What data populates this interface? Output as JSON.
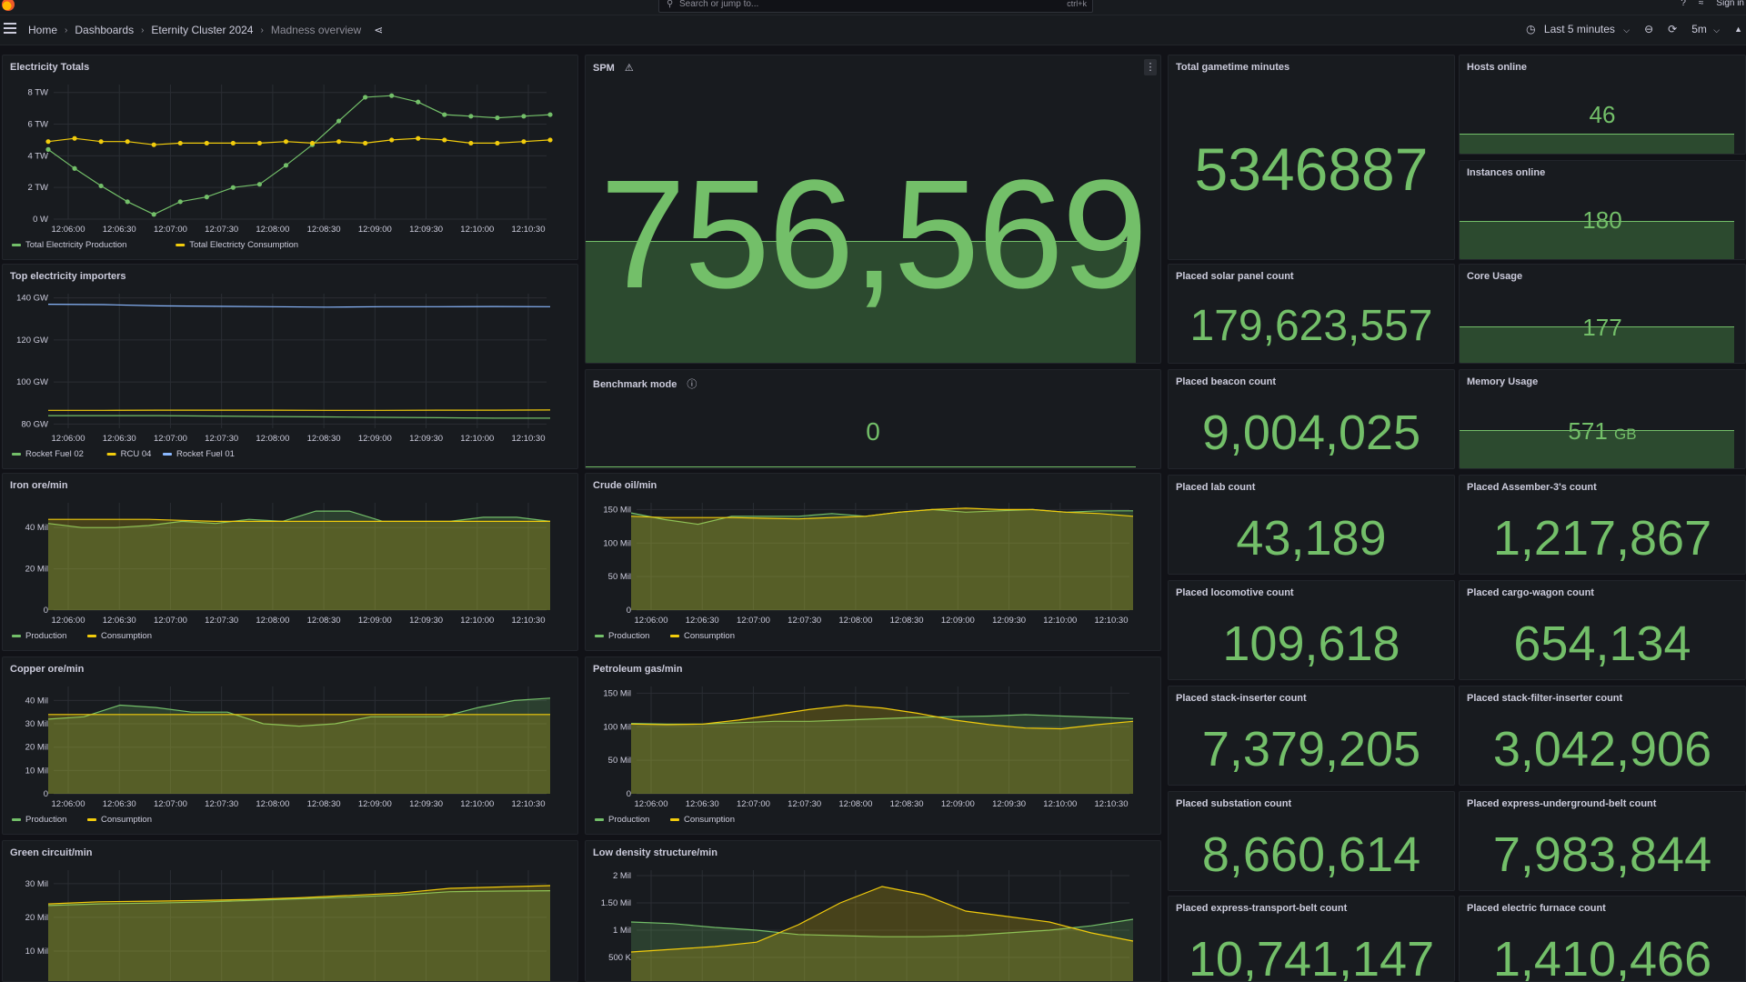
{
  "topbar": {
    "search_placeholder": "Search or jump to...",
    "search_shortcut": "ctrl+k",
    "sign_in": "Sign in"
  },
  "breadcrumb": {
    "items": [
      "Home",
      "Dashboards",
      "Eternity Cluster 2024"
    ],
    "current": "Madness overview"
  },
  "time_picker": {
    "range": "Last 5 minutes",
    "refresh": "5m"
  },
  "icons": [
    "grafana-logo-icon",
    "search-icon",
    "help-icon",
    "rss-icon",
    "menu-icon",
    "share-icon",
    "clock-icon",
    "zoom-out-icon",
    "refresh-icon",
    "chevron-down-icon",
    "chevron-up-icon",
    "warning-icon",
    "info-icon"
  ],
  "colors": {
    "green": "#73bf69",
    "yellow": "#f2cc0c",
    "blue": "#8ab8ff",
    "background": "#111217",
    "panel": "#181b1f"
  },
  "time_ticks": [
    "12:06:00",
    "12:06:30",
    "12:07:00",
    "12:07:30",
    "12:08:00",
    "12:08:30",
    "12:09:00",
    "12:09:30",
    "12:10:00",
    "12:10:30"
  ],
  "stats": {
    "spm": {
      "title": "SPM",
      "value": "756,569"
    },
    "benchmark": {
      "title": "Benchmark mode",
      "value": "0"
    },
    "gametime": {
      "title": "Total gametime minutes",
      "value": "5346887"
    },
    "hosts": {
      "title": "Hosts online",
      "value": "46"
    },
    "instances": {
      "title": "Instances online",
      "value": "180"
    },
    "solar": {
      "title": "Placed solar panel count",
      "value": "179,623,557"
    },
    "core": {
      "title": "Core Usage",
      "value": "177"
    },
    "beacon": {
      "title": "Placed beacon count",
      "value": "9,004,025"
    },
    "memory": {
      "title": "Memory Usage",
      "value": "571",
      "unit": "GB"
    },
    "lab": {
      "title": "Placed lab count",
      "value": "43,189"
    },
    "assembler": {
      "title": "Placed Assember-3's count",
      "value": "1,217,867"
    },
    "locomotive": {
      "title": "Placed locomotive count",
      "value": "109,618"
    },
    "cargo": {
      "title": "Placed cargo-wagon count",
      "value": "654,134"
    },
    "stack_inserter": {
      "title": "Placed stack-inserter count",
      "value": "7,379,205"
    },
    "stack_filter": {
      "title": "Placed stack-filter-inserter count",
      "value": "3,042,906"
    },
    "substation": {
      "title": "Placed substation count",
      "value": "8,660,614"
    },
    "express_underground": {
      "title": "Placed express-underground-belt count",
      "value": "7,983,844"
    },
    "express_belt": {
      "title": "Placed express-transport-belt count",
      "value": "10,741,147"
    },
    "furnace": {
      "title": "Placed electric furnace count",
      "value": "1,410,466"
    }
  },
  "chart_data": [
    {
      "id": "electricity",
      "type": "line",
      "title": "Electricity Totals",
      "yticks": [
        "0 W",
        "2 TW",
        "4 TW",
        "6 TW",
        "8 TW"
      ],
      "ylim": [
        0,
        8.5
      ],
      "ylabel_unit": "TW",
      "fill": false,
      "points": true,
      "series": [
        {
          "name": "Total Electricity Production",
          "color": "#73bf69",
          "values": [
            4.4,
            3.2,
            2.1,
            1.1,
            0.3,
            1.1,
            1.4,
            2.0,
            2.2,
            3.4,
            4.7,
            6.2,
            7.7,
            7.8,
            7.4,
            6.6,
            6.5,
            6.4,
            6.5,
            6.6
          ]
        },
        {
          "name": "Total Electricty Consumption",
          "color": "#f2cc0c",
          "values": [
            4.9,
            5.1,
            4.9,
            4.9,
            4.7,
            4.8,
            4.8,
            4.8,
            4.8,
            4.9,
            4.8,
            4.9,
            4.8,
            5.0,
            5.1,
            5.0,
            4.8,
            4.8,
            4.9,
            5.0
          ]
        }
      ]
    },
    {
      "id": "importers",
      "type": "line",
      "title": "Top electricity importers",
      "yticks": [
        "80 GW",
        "100 GW",
        "120 GW",
        "140 GW"
      ],
      "ylim": [
        78,
        142
      ],
      "ytick_values": [
        80,
        100,
        120,
        140
      ],
      "fill": false,
      "points": false,
      "series": [
        {
          "name": "Rocket Fuel 02",
          "color": "#73bf69",
          "values": [
            84,
            84,
            84,
            83.8,
            83.6,
            83.4,
            83.2,
            83,
            82.8,
            82.8
          ]
        },
        {
          "name": "RCU 04",
          "color": "#f2cc0c",
          "values": [
            86.5,
            86.5,
            86.6,
            86.6,
            86.6,
            86.5,
            86.5,
            86.6,
            86.6,
            86.7
          ]
        },
        {
          "name": "Rocket Fuel 01",
          "color": "#8ab8ff",
          "values": [
            137,
            136.8,
            136.2,
            136,
            135.8,
            135.6,
            135.8,
            135.8,
            135.9,
            135.8
          ]
        }
      ]
    },
    {
      "id": "iron",
      "type": "area",
      "title": "Iron ore/min",
      "yticks": [
        "0",
        "20 Mil",
        "40 Mil"
      ],
      "ylim": [
        0,
        52
      ],
      "ytick_values": [
        0,
        20,
        40
      ],
      "fill": true,
      "points": false,
      "series": [
        {
          "name": "Production",
          "color": "#73bf69",
          "values": [
            42,
            40,
            40,
            41,
            43,
            42,
            44,
            43,
            48,
            48,
            43,
            43,
            43,
            45,
            45,
            43
          ]
        },
        {
          "name": "Consumption",
          "color": "#f2cc0c",
          "values": [
            44,
            44,
            44,
            44,
            43.5,
            43,
            43,
            43,
            43,
            43,
            43,
            43,
            43,
            43,
            43,
            43
          ]
        }
      ]
    },
    {
      "id": "crude",
      "type": "area",
      "title": "Crude oil/min",
      "yticks": [
        "0",
        "50 Mil",
        "100 Mil",
        "150 Mil"
      ],
      "ylim": [
        0,
        160
      ],
      "ytick_values": [
        0,
        50,
        100,
        150
      ],
      "fill": true,
      "points": false,
      "series": [
        {
          "name": "Production",
          "color": "#73bf69",
          "values": [
            145,
            135,
            128,
            140,
            140,
            140,
            144,
            140,
            146,
            150,
            146,
            148,
            150,
            146,
            148,
            148
          ]
        },
        {
          "name": "Consumption",
          "color": "#f2cc0c",
          "values": [
            140,
            138,
            138,
            138,
            137,
            136,
            138,
            140,
            146,
            150,
            152,
            150,
            150,
            146,
            144,
            140
          ]
        }
      ]
    },
    {
      "id": "copper",
      "type": "area",
      "title": "Copper ore/min",
      "yticks": [
        "0",
        "10 Mil",
        "20 Mil",
        "30 Mil",
        "40 Mil"
      ],
      "ylim": [
        0,
        46
      ],
      "ytick_values": [
        0,
        10,
        20,
        30,
        40
      ],
      "fill": true,
      "points": false,
      "series": [
        {
          "name": "Production",
          "color": "#73bf69",
          "values": [
            32,
            33,
            38,
            37,
            35,
            35,
            30,
            29,
            30,
            33,
            33,
            33,
            37,
            40,
            41
          ]
        },
        {
          "name": "Consumption",
          "color": "#f2cc0c",
          "values": [
            34,
            34,
            34,
            34,
            34,
            34,
            34,
            34,
            34,
            34,
            34,
            34,
            34,
            34,
            34
          ]
        }
      ]
    },
    {
      "id": "petroleum",
      "type": "area",
      "title": "Petroleum gas/min",
      "yticks": [
        "0",
        "50 Mil",
        "100 Mil",
        "150 Mil"
      ],
      "ylim": [
        0,
        160
      ],
      "ytick_values": [
        0,
        50,
        100,
        150
      ],
      "fill": true,
      "points": false,
      "series": [
        {
          "name": "Production",
          "color": "#73bf69",
          "values": [
            105,
            104,
            104,
            106,
            108,
            108,
            110,
            112,
            114,
            115,
            116,
            118,
            116,
            114,
            112
          ]
        },
        {
          "name": "Consumption",
          "color": "#f2cc0c",
          "values": [
            104,
            103,
            104,
            110,
            118,
            126,
            132,
            128,
            120,
            110,
            103,
            98,
            97,
            103,
            108
          ]
        }
      ]
    },
    {
      "id": "green_circuit",
      "type": "area",
      "title": "Green circuit/min",
      "yticks": [
        "0",
        "10 Mil",
        "20 Mil",
        "30 Mil"
      ],
      "ylim": [
        0,
        34
      ],
      "ytick_values": [
        0,
        10,
        20,
        30
      ],
      "fill": true,
      "points": false,
      "clip_bottom": true,
      "series": [
        {
          "name": "Production",
          "color": "#73bf69",
          "values": [
            23.5,
            24,
            24.2,
            24.5,
            25,
            25.5,
            26,
            26.6,
            27.6,
            27.8,
            27.9
          ]
        },
        {
          "name": "Consumption",
          "color": "#f2cc0c",
          "values": [
            24,
            24.6,
            24.8,
            25,
            25.3,
            25.8,
            26.5,
            27.2,
            28.6,
            29,
            29.4
          ]
        }
      ]
    },
    {
      "id": "low_density",
      "type": "area",
      "title": "Low density structure/min",
      "yticks": [
        "0",
        "500 K",
        "1 Mil",
        "1.50 Mil",
        "2 Mil"
      ],
      "ylim": [
        0,
        2.1
      ],
      "ytick_values": [
        0,
        0.5,
        1,
        1.5,
        2
      ],
      "fill": true,
      "points": false,
      "clip_bottom": true,
      "series": [
        {
          "name": "Production",
          "color": "#73bf69",
          "values": [
            1.15,
            1.12,
            1.05,
            1.0,
            0.92,
            0.9,
            0.88,
            0.88,
            0.9,
            0.95,
            1.0,
            1.08,
            1.2
          ]
        },
        {
          "name": "Consumption",
          "color": "#f2cc0c",
          "values": [
            0.6,
            0.65,
            0.7,
            0.78,
            1.1,
            1.5,
            1.8,
            1.65,
            1.35,
            1.25,
            1.15,
            0.95,
            0.8
          ]
        }
      ]
    }
  ]
}
